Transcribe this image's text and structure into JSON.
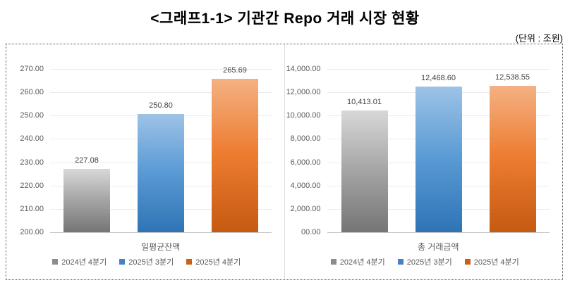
{
  "figure": {
    "title": "<그래프1-1> 기관간 Repo 거래 시장 현황",
    "unit_label": "(단위 : 조원)"
  },
  "chart_data": [
    {
      "type": "bar",
      "title": "일평균잔액",
      "category_label": "일평균잔액",
      "categories": [
        "일평균잔액"
      ],
      "ylim": [
        200,
        270
      ],
      "grid": true,
      "legend_position": "bottom",
      "y_ticks": [
        {
          "value": 270,
          "label": "270.00"
        },
        {
          "value": 260,
          "label": "260.00"
        },
        {
          "value": 250,
          "label": "250.00"
        },
        {
          "value": 240,
          "label": "240.00"
        },
        {
          "value": 230,
          "label": "230.00"
        },
        {
          "value": 220,
          "label": "220.00"
        },
        {
          "value": 210,
          "label": "210.00"
        },
        {
          "value": 200,
          "label": "200.00"
        }
      ],
      "series": [
        {
          "name": "2024년 4분기",
          "value": 227.08,
          "data_label": "227.08",
          "color_top": "#d8d8d8",
          "color_mid": "#a6a6a6",
          "color_bottom": "#757575",
          "marker_color": "#8c8c8c"
        },
        {
          "name": "2025년 3분기",
          "value": 250.8,
          "data_label": "250.80",
          "color_top": "#9dc3e6",
          "color_mid": "#5b9bd5",
          "color_bottom": "#2e74b5",
          "marker_color": "#4a7fc1"
        },
        {
          "name": "2025년 4분기",
          "value": 265.69,
          "data_label": "265.69",
          "color_top": "#f4b183",
          "color_mid": "#ed7d31",
          "color_bottom": "#c55a11",
          "marker_color": "#cb6015"
        }
      ]
    },
    {
      "type": "bar",
      "title": "총 거래금액",
      "category_label": "총 거래금액",
      "categories": [
        "총 거래금액"
      ],
      "ylim": [
        0,
        14000
      ],
      "grid": true,
      "legend_position": "bottom",
      "y_ticks": [
        {
          "value": 14000,
          "label": "14,000.00"
        },
        {
          "value": 12000,
          "label": "12,000.00"
        },
        {
          "value": 10000,
          "label": "10,000.00"
        },
        {
          "value": 8000,
          "label": "8,000.00"
        },
        {
          "value": 6000,
          "label": "6,000.00"
        },
        {
          "value": 4000,
          "label": "4,000.00"
        },
        {
          "value": 2000,
          "label": "2,000.00"
        },
        {
          "value": 0,
          "label": "00.00"
        }
      ],
      "series": [
        {
          "name": "2024년 4분기",
          "value": 10413.01,
          "data_label": "10,413.01",
          "color_top": "#d8d8d8",
          "color_mid": "#a6a6a6",
          "color_bottom": "#757575",
          "marker_color": "#8c8c8c"
        },
        {
          "name": "2025년 3분기",
          "value": 12468.6,
          "data_label": "12,468.60",
          "color_top": "#9dc3e6",
          "color_mid": "#5b9bd5",
          "color_bottom": "#2e74b5",
          "marker_color": "#4a7fc1"
        },
        {
          "name": "2025년 4분기",
          "value": 12538.55,
          "data_label": "12,538.55",
          "color_top": "#f4b183",
          "color_mid": "#ed7d31",
          "color_bottom": "#c55a11",
          "marker_color": "#cb6015"
        }
      ]
    }
  ]
}
